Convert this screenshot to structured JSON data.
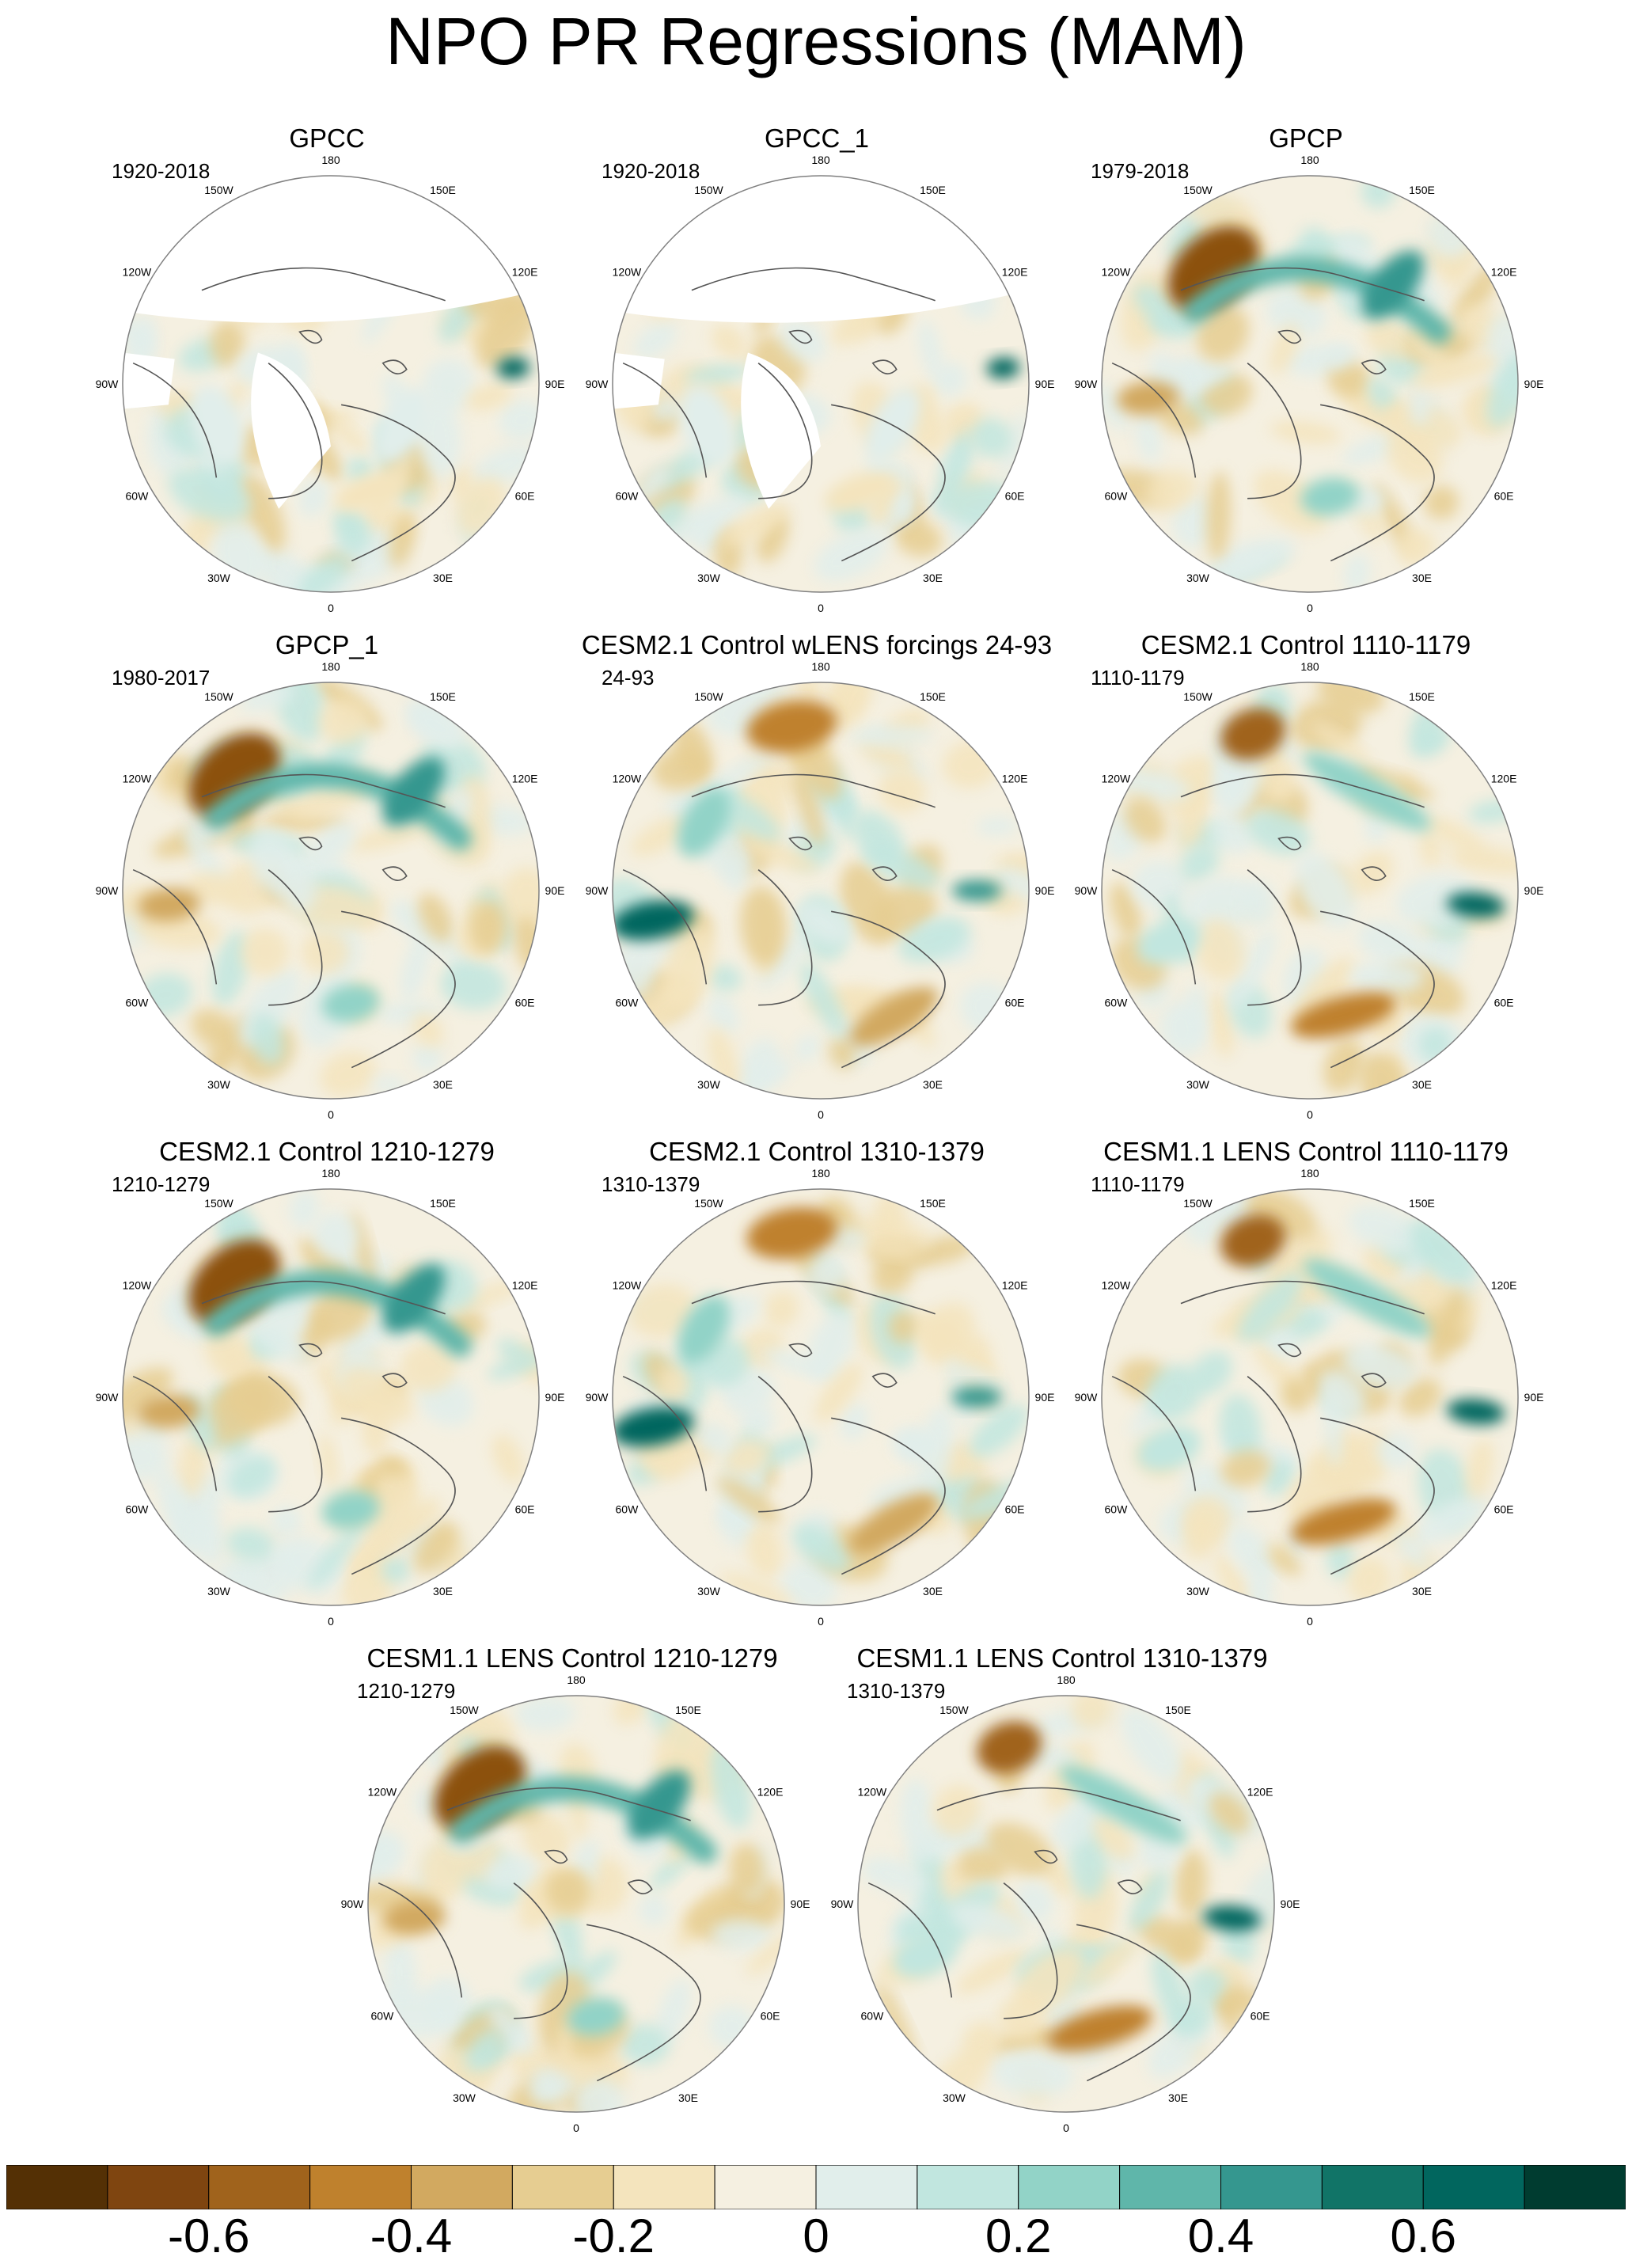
{
  "title": "NPO PR Regressions (MAM)",
  "meridian_labels": {
    "180": "180",
    "150E": "150E",
    "120E": "120E",
    "90E": "90E",
    "60E": "60E",
    "30E": "30E",
    "0": "0",
    "30W": "30W",
    "60W": "60W",
    "90W": "90W",
    "120W": "120W",
    "150W": "150W"
  },
  "colors": {
    "brown_dark": "#543005",
    "brown": "#8c510a",
    "tan": "#dfc27d",
    "neutral": "#f5f0e1",
    "teal_light": "#c7eae5",
    "teal": "#35978f",
    "teal_dark": "#003c30",
    "land_outline": "#555555",
    "no_data": "#ffffff"
  },
  "panels": [
    {
      "title": "GPCC",
      "period": "1920-2018",
      "pattern": "gpcc"
    },
    {
      "title": "GPCC_1",
      "period": "1920-2018",
      "pattern": "gpcc"
    },
    {
      "title": "GPCP",
      "period": "1979-2018",
      "pattern": "obs"
    },
    {
      "title": "GPCP_1",
      "period": "1980-2017",
      "pattern": "obs"
    },
    {
      "title": "CESM2.1 Control wLENS forcings 24-93",
      "period": "24-93",
      "pattern": "model_a"
    },
    {
      "title": "CESM2.1 Control 1110-1179",
      "period": "1110-1179",
      "pattern": "model_b"
    },
    {
      "title": "CESM2.1 Control 1210-1279",
      "period": "1210-1279",
      "pattern": "obs"
    },
    {
      "title": "CESM2.1 Control 1310-1379",
      "period": "1310-1379",
      "pattern": "model_a"
    },
    {
      "title": "CESM1.1 LENS Control 1110-1179",
      "period": "1110-1179",
      "pattern": "model_b"
    },
    {
      "title": "CESM1.1 LENS Control 1210-1279",
      "period": "1210-1279",
      "pattern": "obs"
    },
    {
      "title": "CESM1.1 LENS Control 1310-1379",
      "period": "1310-1379",
      "pattern": "model_b"
    }
  ],
  "chart_data": {
    "type": "heatmap",
    "title": "NPO PR Regressions (MAM)",
    "projection": "polar stereographic, Northern Hemisphere",
    "variable": "precipitation regression on NPO index",
    "colorbar": {
      "levels": [
        -0.7,
        -0.6,
        -0.5,
        -0.4,
        -0.3,
        -0.2,
        -0.1,
        0,
        0.1,
        0.2,
        0.3,
        0.4,
        0.5,
        0.6,
        0.7
      ],
      "tick_labels": [
        "-0.6",
        "-0.4",
        "-0.2",
        "0",
        "0.2",
        "0.4",
        "0.6"
      ],
      "tick_values": [
        -0.6,
        -0.4,
        -0.2,
        0,
        0.2,
        0.4,
        0.6
      ],
      "colors": [
        "#543005",
        "#7f4510",
        "#a0631c",
        "#bf812d",
        "#d2a960",
        "#e6cd91",
        "#f4e4bd",
        "#f5f0e1",
        "#e1eeeb",
        "#c1e6df",
        "#92d3c7",
        "#5fb6aa",
        "#35978f",
        "#117467",
        "#01665e",
        "#003c30"
      ]
    }
  }
}
